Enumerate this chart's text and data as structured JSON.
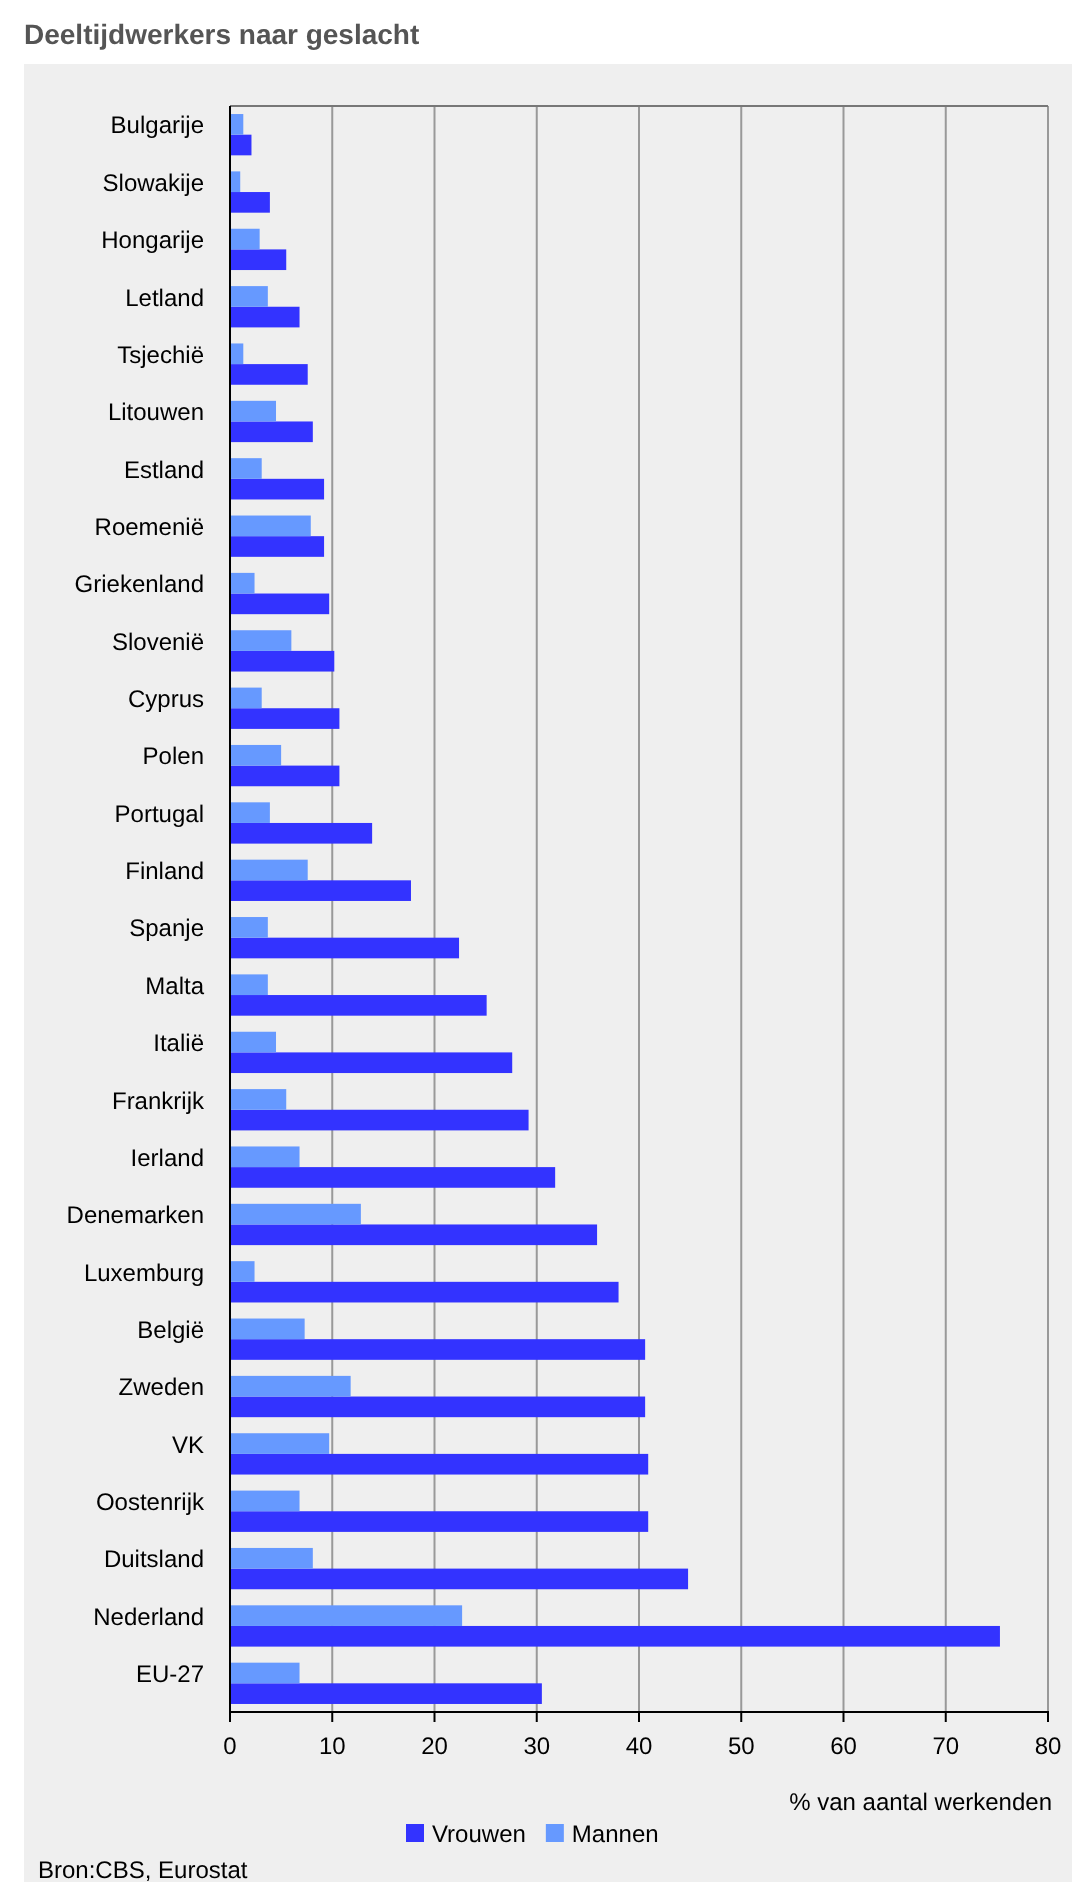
{
  "chart_data": {
    "type": "bar",
    "orientation": "horizontal",
    "title": "Deeltijdwerkers naar geslacht",
    "xlabel": "% van aantal werkenden",
    "categories": [
      "Bulgarije",
      "Slowakije",
      "Hongarije",
      "Letland",
      "Tsjechië",
      "Litouwen",
      "Estland",
      "Roemenië",
      "Griekenland",
      "Slovenië",
      "Cyprus",
      "Polen",
      "Portugal",
      "Finland",
      "Spanje",
      "Malta",
      "Italië",
      "Frankrijk",
      "Ierland",
      "Denemarken",
      "Luxemburg",
      "België",
      "Zweden",
      "VK",
      "Oostenrijk",
      "Duitsland",
      "Nederland",
      "EU-27"
    ],
    "series": [
      {
        "name": "Vrouwen",
        "color": "#3333ff",
        "values": [
          2.1,
          3.9,
          5.5,
          6.8,
          7.6,
          8.1,
          9.2,
          9.2,
          9.7,
          10.2,
          10.7,
          10.7,
          13.9,
          17.7,
          22.4,
          25.1,
          27.6,
          29.2,
          31.8,
          35.9,
          38.0,
          40.6,
          40.6,
          40.9,
          40.9,
          44.8,
          75.3,
          30.5
        ]
      },
      {
        "name": "Mannen",
        "color": "#6699ff",
        "values": [
          1.3,
          1.0,
          2.9,
          3.7,
          1.3,
          4.5,
          3.1,
          7.9,
          2.4,
          6.0,
          3.1,
          5.0,
          3.9,
          7.6,
          3.7,
          3.7,
          4.5,
          5.5,
          6.8,
          12.8,
          2.4,
          7.3,
          11.8,
          9.7,
          6.8,
          8.1,
          22.7,
          6.8
        ]
      }
    ],
    "xlim": [
      0,
      80
    ],
    "xticks": [
      0,
      10,
      20,
      30,
      40,
      50,
      60,
      70,
      80
    ],
    "grid": "x",
    "legend": "bottom",
    "annotations": [
      "Bron:CBS, Eurostat"
    ]
  }
}
